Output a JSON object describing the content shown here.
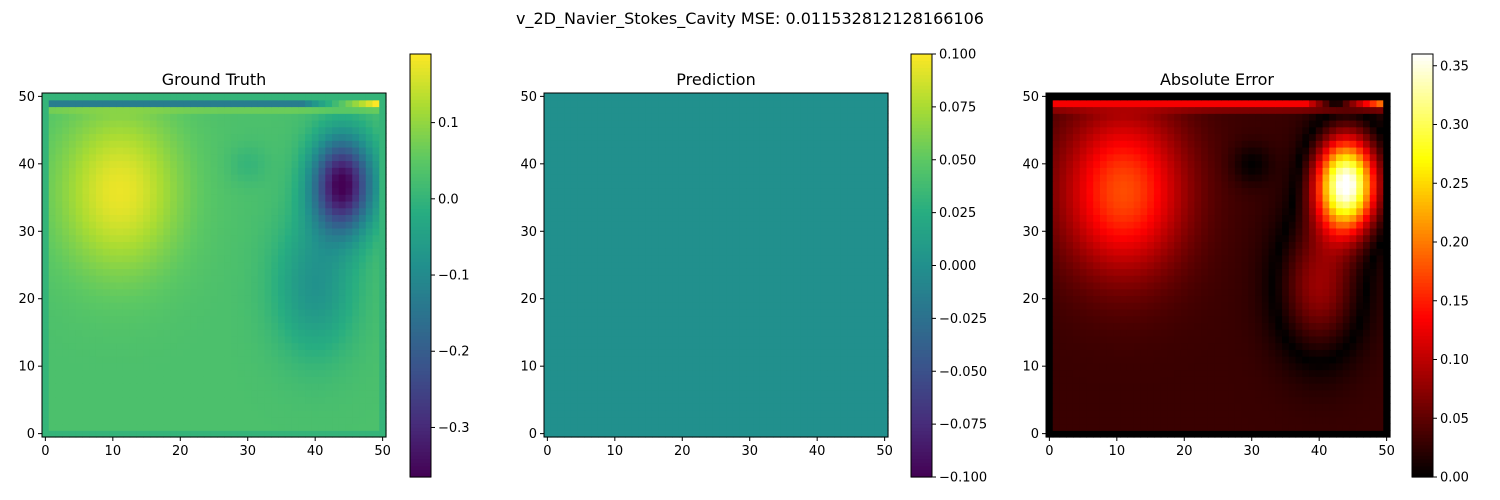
{
  "figure": {
    "title": "v_2D_Navier_Stokes_Cavity MSE: 0.011532812128166106"
  },
  "chart_data": [
    {
      "type": "heatmap",
      "title": "Ground Truth",
      "grid_size": [
        51,
        51
      ],
      "xlim": [
        0,
        50
      ],
      "ylim": [
        0,
        50
      ],
      "xticks": [
        "0",
        "10",
        "20",
        "30",
        "40",
        "50"
      ],
      "yticks": [
        "0",
        "10",
        "20",
        "30",
        "40",
        "50"
      ],
      "colormap": "viridis",
      "value_range": [
        -0.365,
        0.19
      ],
      "colorbar_ticks": [
        "0.1",
        "0.0",
        "−0.1",
        "−0.2",
        "−0.3"
      ],
      "colorbar_tick_values": [
        0.1,
        0.0,
        -0.1,
        -0.2,
        -0.3
      ]
    },
    {
      "type": "heatmap",
      "title": "Prediction",
      "grid_size": [
        51,
        51
      ],
      "xlim": [
        0,
        50
      ],
      "ylim": [
        0,
        50
      ],
      "xticks": [
        "0",
        "10",
        "20",
        "30",
        "40",
        "50"
      ],
      "yticks": [
        "0",
        "10",
        "20",
        "30",
        "40",
        "50"
      ],
      "colormap": "viridis",
      "value_range": [
        -0.1,
        0.1
      ],
      "uniform_value": 0.0,
      "colorbar_ticks": [
        "0.100",
        "0.075",
        "0.050",
        "0.025",
        "0.000",
        "−0.025",
        "−0.050",
        "−0.075",
        "−0.100"
      ],
      "colorbar_tick_values": [
        0.1,
        0.075,
        0.05,
        0.025,
        0.0,
        -0.025,
        -0.05,
        -0.075,
        -0.1
      ]
    },
    {
      "type": "heatmap",
      "title": "Absolute Error",
      "grid_size": [
        51,
        51
      ],
      "xlim": [
        0,
        50
      ],
      "ylim": [
        0,
        50
      ],
      "xticks": [
        "0",
        "10",
        "20",
        "30",
        "40",
        "50"
      ],
      "yticks": [
        "0",
        "10",
        "20",
        "30",
        "40",
        "50"
      ],
      "colormap": "hot",
      "value_range": [
        0.0,
        0.36
      ],
      "colorbar_ticks": [
        "0.35",
        "0.30",
        "0.25",
        "0.20",
        "0.15",
        "0.10",
        "0.05",
        "0.00"
      ],
      "colorbar_tick_values": [
        0.35,
        0.3,
        0.25,
        0.2,
        0.15,
        0.1,
        0.05,
        0.0
      ]
    }
  ]
}
